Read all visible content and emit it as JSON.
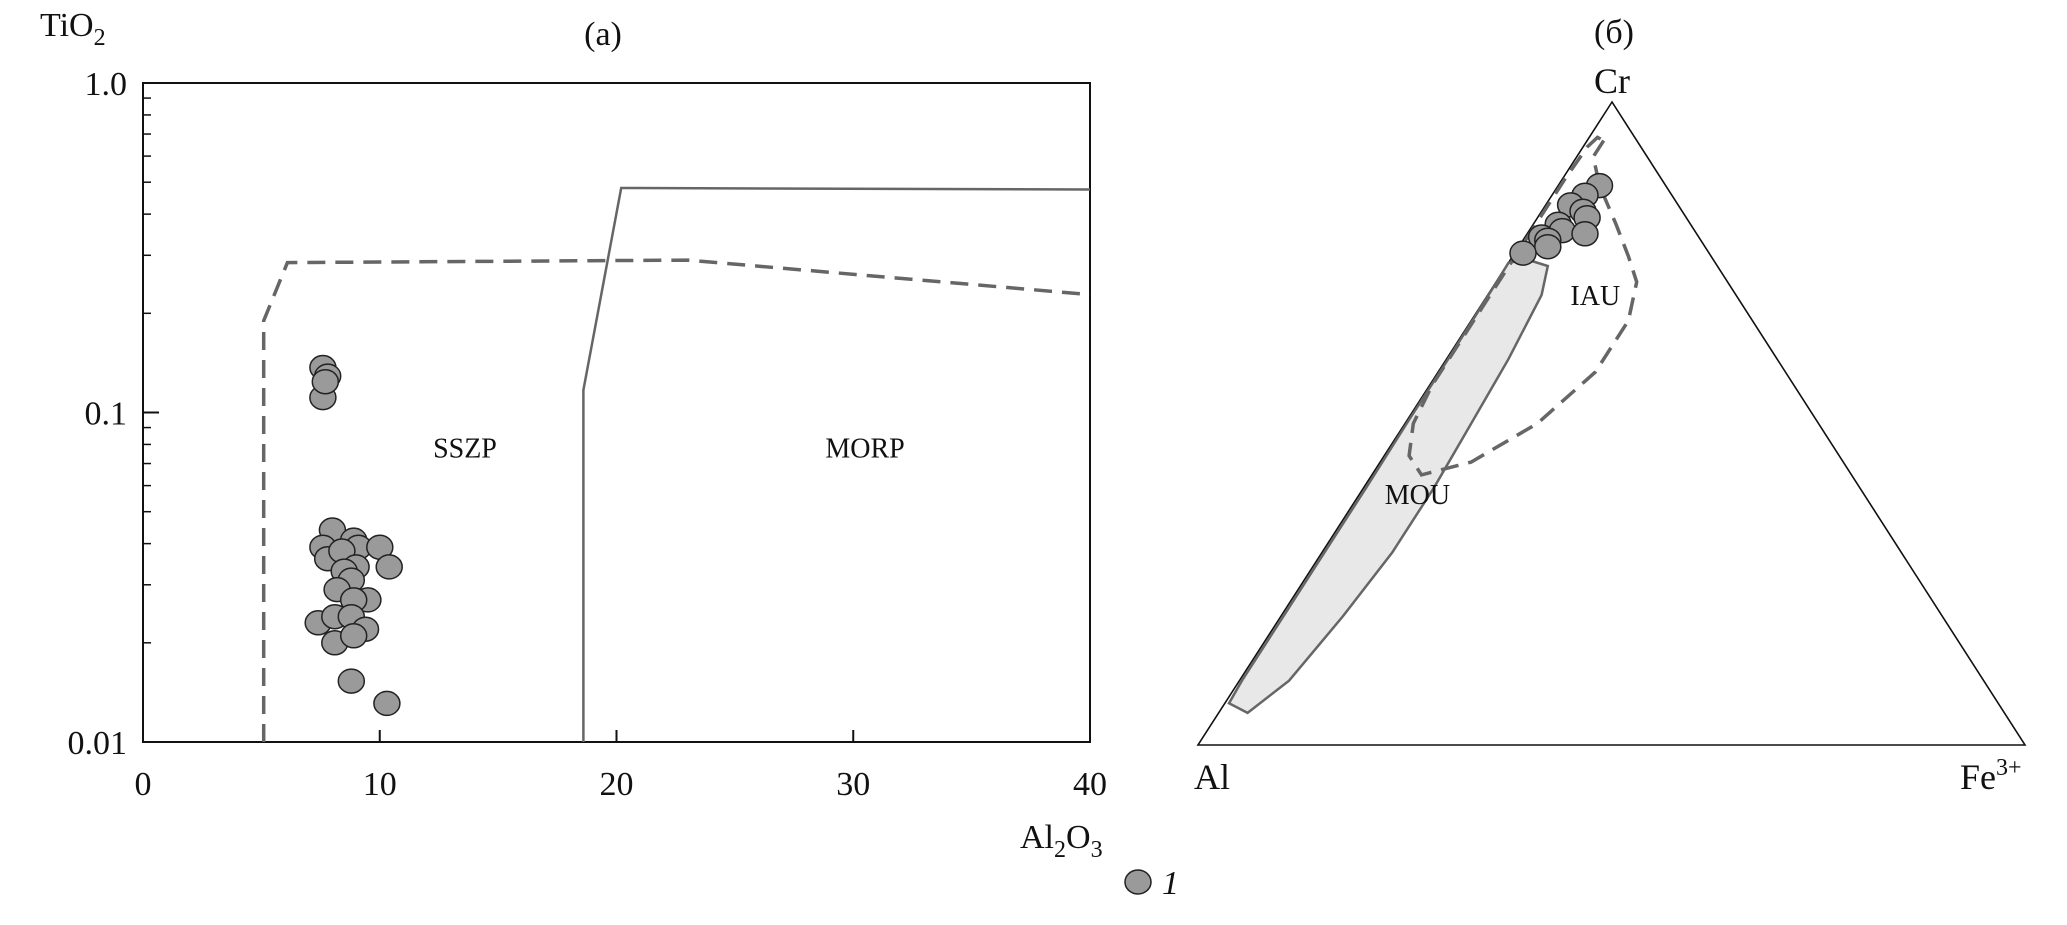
{
  "chart_data": [
    {
      "type": "scatter",
      "panel_label": "(a)",
      "y_label": "TiO",
      "y_label_sub": "2",
      "x_label_parts": [
        "Al",
        "2",
        "O",
        "3"
      ],
      "x_ticks": [
        0,
        10,
        20,
        30,
        40
      ],
      "x_tick_labels": [
        "0",
        "10",
        "20",
        "30",
        "40"
      ],
      "xlim": [
        0,
        40
      ],
      "y_scale": "log",
      "ylim": [
        0.01,
        1.0
      ],
      "y_ticks": [
        0.01,
        0.1,
        1.0
      ],
      "y_tick_labels": [
        "0.01",
        "0.1",
        "1.0"
      ],
      "region_labels": [
        {
          "text": "SSZP",
          "x": 13.6,
          "y": 0.073
        },
        {
          "text": "MORP",
          "x": 30.5,
          "y": 0.073
        }
      ],
      "boundaries": [
        {
          "name": "SSZP",
          "style": "dashed",
          "points": [
            [
              5.1,
              0.01
            ],
            [
              5.1,
              0.19
            ],
            [
              6.1,
              0.285
            ],
            [
              23,
              0.29
            ],
            [
              40,
              0.228
            ]
          ]
        },
        {
          "name": "MORP",
          "style": "solid",
          "points": [
            [
              18.6,
              0.01
            ],
            [
              18.6,
              0.117
            ],
            [
              20.2,
              0.48
            ],
            [
              40,
              0.475
            ]
          ]
        }
      ],
      "series": [
        {
          "legend": "1",
          "marker": "circle",
          "color": "#9a9a9a",
          "points": [
            [
              7.6,
              0.137
            ],
            [
              7.8,
              0.129
            ],
            [
              7.6,
              0.111
            ],
            [
              7.7,
              0.124
            ],
            [
              8.0,
              0.044
            ],
            [
              8.9,
              0.041
            ],
            [
              9.1,
              0.039
            ],
            [
              7.6,
              0.039
            ],
            [
              7.8,
              0.036
            ],
            [
              8.4,
              0.038
            ],
            [
              9.0,
              0.034
            ],
            [
              8.5,
              0.033
            ],
            [
              10.0,
              0.039
            ],
            [
              10.4,
              0.034
            ],
            [
              9.5,
              0.027
            ],
            [
              8.8,
              0.031
            ],
            [
              8.2,
              0.029
            ],
            [
              8.9,
              0.027
            ],
            [
              7.4,
              0.023
            ],
            [
              8.1,
              0.024
            ],
            [
              8.8,
              0.024
            ],
            [
              9.4,
              0.022
            ],
            [
              8.1,
              0.02
            ],
            [
              8.9,
              0.021
            ],
            [
              8.8,
              0.0153
            ],
            [
              10.3,
              0.0131
            ]
          ]
        }
      ]
    },
    {
      "type": "ternary",
      "panel_label": "(б)",
      "vertices": {
        "top": "Cr",
        "left": "Al",
        "right_main": "Fe",
        "right_sup": "3+"
      },
      "region_labels": [
        {
          "text": "IAU",
          "cr": 0.7,
          "fe": 0.13
        },
        {
          "text": "MOU",
          "cr": 0.39,
          "fe": 0.07
        }
      ],
      "regions": [
        {
          "name": "IAU",
          "style": "dashed",
          "fill": "none",
          "points": [
            [
              0.94,
              0.02
            ],
            [
              0.915,
              0.02
            ],
            [
              0.87,
              0.05
            ],
            [
              0.81,
              0.1
            ],
            [
              0.76,
              0.14
            ],
            [
              0.72,
              0.17
            ],
            [
              0.66,
              0.19
            ],
            [
              0.58,
              0.19
            ],
            [
              0.5,
              0.16
            ],
            [
              0.44,
              0.11
            ],
            [
              0.42,
              0.06
            ],
            [
              0.45,
              0.03
            ],
            [
              0.5,
              0.01
            ],
            [
              0.56,
              0.003
            ],
            [
              0.64,
              0.003
            ],
            [
              0.72,
              0.003
            ],
            [
              0.8,
              0.003
            ],
            [
              0.88,
              0.003
            ],
            [
              0.93,
              0.005
            ],
            [
              0.945,
              0.01
            ],
            [
              0.94,
              0.02
            ]
          ]
        },
        {
          "name": "MOU",
          "style": "solid",
          "fill": "#e8e8e8",
          "points": [
            [
              0.75,
              0.0
            ],
            [
              0.755,
              0.02
            ],
            [
              0.745,
              0.05
            ],
            [
              0.7,
              0.065
            ],
            [
              0.6,
              0.075
            ],
            [
              0.5,
              0.08
            ],
            [
              0.4,
              0.085
            ],
            [
              0.3,
              0.085
            ],
            [
              0.2,
              0.075
            ],
            [
              0.1,
              0.06
            ],
            [
              0.05,
              0.035
            ],
            [
              0.065,
              0.005
            ],
            [
              0.1,
              0.003
            ],
            [
              0.2,
              0.003
            ],
            [
              0.3,
              0.003
            ],
            [
              0.4,
              0.003
            ],
            [
              0.5,
              0.002
            ],
            [
              0.6,
              0.002
            ],
            [
              0.7,
              0.001
            ],
            [
              0.75,
              0.0
            ]
          ]
        }
      ],
      "series": [
        {
          "legend": "1",
          "marker": "circle",
          "color": "#9a9a9a",
          "points": [
            {
              "cr": 0.87,
              "fe": 0.05
            },
            {
              "cr": 0.855,
              "fe": 0.04
            },
            {
              "cr": 0.84,
              "fe": 0.03
            },
            {
              "cr": 0.83,
              "fe": 0.05
            },
            {
              "cr": 0.82,
              "fe": 0.06
            },
            {
              "cr": 0.81,
              "fe": 0.03
            },
            {
              "cr": 0.8,
              "fe": 0.04
            },
            {
              "cr": 0.795,
              "fe": 0.07
            },
            {
              "cr": 0.79,
              "fe": 0.02
            },
            {
              "cr": 0.785,
              "fe": 0.03
            },
            {
              "cr": 0.775,
              "fe": 0.035
            },
            {
              "cr": 0.765,
              "fe": 0.01
            }
          ]
        }
      ]
    }
  ],
  "legend": {
    "marker": "circle",
    "color": "#9a9a9a",
    "label": "1"
  }
}
